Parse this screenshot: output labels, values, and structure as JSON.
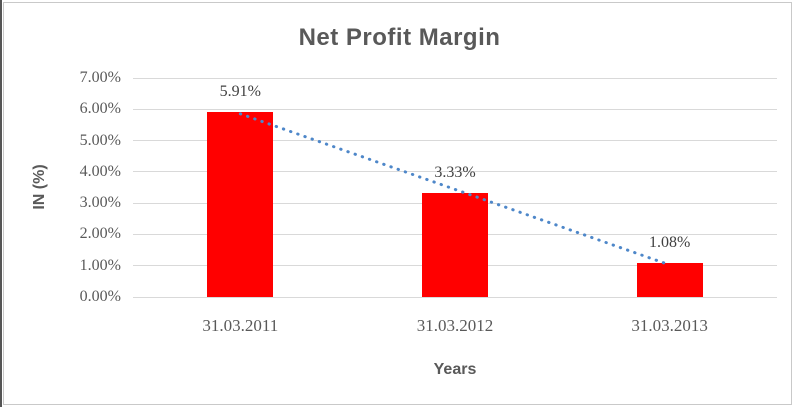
{
  "window": {
    "background": "#ffffff",
    "frame_color": "#c9c9c9",
    "edge_color": "#555555"
  },
  "chart_data": {
    "type": "bar",
    "title": "Net Profit Margin",
    "categories": [
      "31.03.2011",
      "31.03.2012",
      "31.03.2013"
    ],
    "values": [
      5.91,
      3.33,
      1.08
    ],
    "data_labels": [
      "5.91%",
      "3.33%",
      "1.08%"
    ],
    "xlabel": "Years",
    "ylabel": "IN (%)",
    "ylim": [
      0,
      7
    ],
    "ytick_step": 1,
    "ytick_labels": [
      "0.00%",
      "1.00%",
      "2.00%",
      "3.00%",
      "4.00%",
      "5.00%",
      "6.00%",
      "7.00%"
    ],
    "grid": true,
    "legend": "none",
    "trendline": {
      "type": "linear",
      "style": "dotted"
    },
    "colors": {
      "bar": "#FF0000",
      "trendline": "#4E87C9",
      "gridline": "#D9D9D9",
      "title_text": "#595959",
      "tick_text": "#595959",
      "data_label_text": "#404040"
    }
  }
}
